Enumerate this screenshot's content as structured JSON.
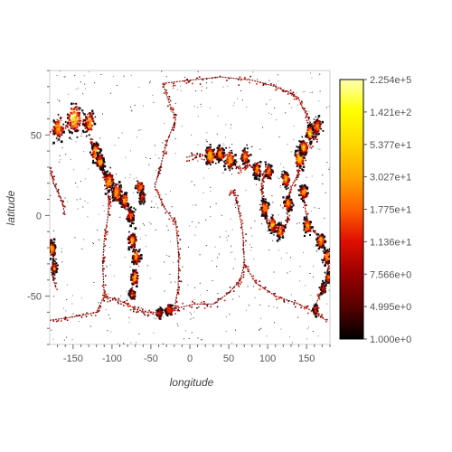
{
  "chart_data": {
    "type": "heatmap",
    "xlabel": "longitude",
    "ylabel": "latitude",
    "xlim": [
      -180,
      180
    ],
    "ylim": [
      -80,
      90
    ],
    "x_ticks": [
      -150,
      -100,
      -50,
      0,
      50,
      100,
      150
    ],
    "y_ticks": [
      -50,
      0,
      50
    ],
    "colorbar": {
      "labels": [
        "2.254e+5",
        "1.421e+2",
        "5.377e+1",
        "3.027e+1",
        "1.775e+1",
        "1.136e+1",
        "7.566e+0",
        "4.995e+0",
        "1.000e+0"
      ],
      "colors": [
        "#ffffb2",
        "#ffff00",
        "#ffd700",
        "#ffa500",
        "#ff6000",
        "#e01000",
        "#9a0000",
        "#550000",
        "#000000"
      ]
    },
    "hotspots": [
      {
        "lon": -150,
        "lat": 61,
        "intensity": 0.9,
        "spread": 8
      },
      {
        "lon": -170,
        "lat": 55,
        "intensity": 0.8,
        "spread": 6
      },
      {
        "lon": -130,
        "lat": 58,
        "intensity": 0.7,
        "spread": 6
      },
      {
        "lon": -122,
        "lat": 40,
        "intensity": 0.85,
        "spread": 5
      },
      {
        "lon": -116,
        "lat": 34,
        "intensity": 0.9,
        "spread": 4
      },
      {
        "lon": -105,
        "lat": 22,
        "intensity": 0.8,
        "spread": 5
      },
      {
        "lon": -95,
        "lat": 15,
        "intensity": 0.85,
        "spread": 5
      },
      {
        "lon": -85,
        "lat": 10,
        "intensity": 0.8,
        "spread": 4
      },
      {
        "lon": -77,
        "lat": 0,
        "intensity": 0.6,
        "spread": 4
      },
      {
        "lon": -75,
        "lat": -15,
        "intensity": 0.85,
        "spread": 4
      },
      {
        "lon": -70,
        "lat": -25,
        "intensity": 0.8,
        "spread": 4
      },
      {
        "lon": -72,
        "lat": -38,
        "intensity": 0.85,
        "spread": 4
      },
      {
        "lon": -75,
        "lat": -48,
        "intensity": 0.5,
        "spread": 3
      },
      {
        "lon": -65,
        "lat": 18,
        "intensity": 0.6,
        "spread": 4
      },
      {
        "lon": -62,
        "lat": 12,
        "intensity": 0.5,
        "spread": 3
      },
      {
        "lon": -178,
        "lat": -20,
        "intensity": 0.75,
        "spread": 4
      },
      {
        "lon": -175,
        "lat": -32,
        "intensity": 0.6,
        "spread": 3
      },
      {
        "lon": -28,
        "lat": -58,
        "intensity": 0.6,
        "spread": 3
      },
      {
        "lon": -40,
        "lat": -60,
        "intensity": 0.4,
        "spread": 3
      },
      {
        "lon": 25,
        "lat": 38,
        "intensity": 0.9,
        "spread": 5
      },
      {
        "lon": 38,
        "lat": 39,
        "intensity": 0.8,
        "spread": 4
      },
      {
        "lon": 50,
        "lat": 35,
        "intensity": 0.8,
        "spread": 5
      },
      {
        "lon": 70,
        "lat": 37,
        "intensity": 0.7,
        "spread": 4
      },
      {
        "lon": 85,
        "lat": 29,
        "intensity": 0.7,
        "spread": 4
      },
      {
        "lon": 100,
        "lat": 28,
        "intensity": 0.7,
        "spread": 4
      },
      {
        "lon": 95,
        "lat": 5,
        "intensity": 0.8,
        "spread": 4
      },
      {
        "lon": 105,
        "lat": -5,
        "intensity": 0.85,
        "spread": 4
      },
      {
        "lon": 115,
        "lat": -9,
        "intensity": 0.8,
        "spread": 4
      },
      {
        "lon": 125,
        "lat": 8,
        "intensity": 0.85,
        "spread": 4
      },
      {
        "lon": 122,
        "lat": 23,
        "intensity": 0.85,
        "spread": 4
      },
      {
        "lon": 140,
        "lat": 36,
        "intensity": 0.95,
        "spread": 5
      },
      {
        "lon": 145,
        "lat": 43,
        "intensity": 0.9,
        "spread": 4
      },
      {
        "lon": 153,
        "lat": 52,
        "intensity": 0.85,
        "spread": 4
      },
      {
        "lon": 163,
        "lat": 56,
        "intensity": 0.7,
        "spread": 4
      },
      {
        "lon": 145,
        "lat": 15,
        "intensity": 0.75,
        "spread": 4
      },
      {
        "lon": 150,
        "lat": -6,
        "intensity": 0.85,
        "spread": 4
      },
      {
        "lon": 167,
        "lat": -15,
        "intensity": 0.85,
        "spread": 4
      },
      {
        "lon": 175,
        "lat": -25,
        "intensity": 0.8,
        "spread": 4
      },
      {
        "lon": 177,
        "lat": -38,
        "intensity": 0.6,
        "spread": 3
      },
      {
        "lon": 170,
        "lat": -45,
        "intensity": 0.4,
        "spread": 3
      },
      {
        "lon": 160,
        "lat": -58,
        "intensity": 0.3,
        "spread": 3
      }
    ],
    "plate_boundaries": [
      [
        [
          -35,
          82
        ],
        [
          -25,
          68
        ],
        [
          -18,
          60
        ],
        [
          -30,
          45
        ],
        [
          -38,
          30
        ],
        [
          -45,
          18
        ],
        [
          -33,
          5
        ],
        [
          -18,
          -5
        ],
        [
          -14,
          -25
        ],
        [
          -15,
          -45
        ],
        [
          -20,
          -58
        ],
        [
          5,
          -55
        ],
        [
          30,
          -55
        ],
        [
          50,
          -48
        ],
        [
          65,
          -40
        ],
        [
          70,
          -30
        ],
        [
          68,
          -10
        ],
        [
          62,
          5
        ],
        [
          58,
          15
        ],
        [
          50,
          14
        ]
      ],
      [
        [
          -35,
          82
        ],
        [
          0,
          84
        ],
        [
          40,
          86
        ],
        [
          80,
          84
        ],
        [
          110,
          80
        ],
        [
          130,
          76
        ],
        [
          140,
          72
        ]
      ],
      [
        [
          70,
          -30
        ],
        [
          85,
          -42
        ],
        [
          110,
          -50
        ],
        [
          140,
          -55
        ],
        [
          160,
          -60
        ],
        [
          175,
          -65
        ]
      ],
      [
        [
          -180,
          -65
        ],
        [
          -150,
          -63
        ],
        [
          -120,
          -60
        ],
        [
          -110,
          -50
        ],
        [
          -112,
          -30
        ],
        [
          -110,
          -15
        ],
        [
          -105,
          0
        ],
        [
          -104,
          10
        ],
        [
          -108,
          22
        ],
        [
          -115,
          30
        ],
        [
          -123,
          40
        ],
        [
          -128,
          48
        ]
      ],
      [
        [
          -110,
          -50
        ],
        [
          -95,
          -52
        ],
        [
          -80,
          -55
        ],
        [
          -70,
          -58
        ],
        [
          -55,
          -60
        ],
        [
          -40,
          -60
        ],
        [
          -28,
          -58
        ],
        [
          -20,
          -58
        ]
      ],
      [
        [
          -104,
          10
        ],
        [
          -95,
          12
        ],
        [
          -85,
          8
        ],
        [
          -78,
          3
        ]
      ],
      [
        [
          -180,
          -15
        ],
        [
          -175,
          -25
        ],
        [
          -178,
          -35
        ],
        [
          -172,
          -45
        ]
      ],
      [
        [
          140,
          72
        ],
        [
          150,
          62
        ],
        [
          158,
          55
        ],
        [
          162,
          50
        ],
        [
          155,
          45
        ],
        [
          146,
          40
        ],
        [
          142,
          32
        ],
        [
          138,
          25
        ],
        [
          128,
          15
        ],
        [
          126,
          5
        ],
        [
          125,
          -5
        ],
        [
          115,
          -10
        ],
        [
          100,
          -6
        ],
        [
          95,
          3
        ],
        [
          93,
          12
        ],
        [
          92,
          20
        ],
        [
          96,
          25
        ]
      ],
      [
        [
          -5,
          36
        ],
        [
          10,
          38
        ],
        [
          25,
          36
        ],
        [
          35,
          36
        ],
        [
          45,
          38
        ],
        [
          55,
          33
        ],
        [
          65,
          28
        ],
        [
          75,
          32
        ],
        [
          85,
          28
        ],
        [
          96,
          25
        ]
      ],
      [
        [
          145,
          15
        ],
        [
          148,
          5
        ],
        [
          152,
          -6
        ],
        [
          160,
          -10
        ],
        [
          168,
          -16
        ],
        [
          175,
          -22
        ],
        [
          178,
          -32
        ],
        [
          175,
          -40
        ],
        [
          168,
          -48
        ],
        [
          162,
          -55
        ]
      ],
      [
        [
          -180,
          52
        ],
        [
          -170,
          53
        ],
        [
          -160,
          55
        ],
        [
          -150,
          58
        ],
        [
          -140,
          59
        ],
        [
          -130,
          56
        ]
      ],
      [
        [
          -180,
          30
        ],
        [
          -175,
          20
        ],
        [
          -165,
          10
        ],
        [
          -160,
          0
        ]
      ]
    ]
  }
}
